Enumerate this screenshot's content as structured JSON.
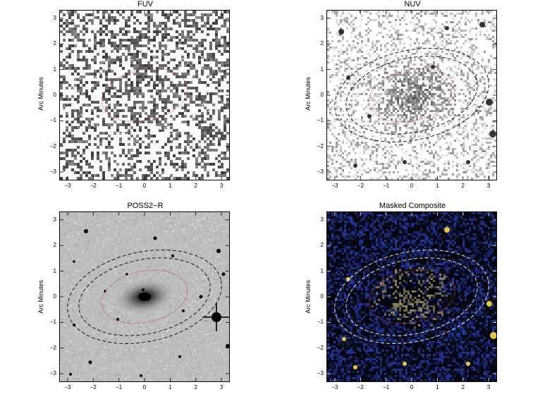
{
  "figure": {
    "panels": [
      {
        "id": "fuv",
        "title": "FUV",
        "ylabel": "Arc Minutes",
        "style": "fuv"
      },
      {
        "id": "nuv",
        "title": "NUV",
        "ylabel": "Arc Minutes",
        "style": "nuv"
      },
      {
        "id": "poss",
        "title": "POSS2−R",
        "ylabel": "Arc Minutes",
        "style": "poss"
      },
      {
        "id": "composite",
        "title": "Masked Composite",
        "ylabel": "Arc Minutes",
        "style": "composite"
      }
    ],
    "x_ticks": [
      "−3",
      "−2",
      "−1",
      "0",
      "1",
      "2",
      "3"
    ],
    "y_ticks": [
      "3",
      "2",
      "1",
      "0",
      "−1",
      "−2",
      "−3"
    ],
    "axis_range": [
      -3.3,
      3.3
    ],
    "colors": {
      "inner_ellipse": "#e03030",
      "outer_ellipse_dark": "#000000",
      "outer_ellipse_light": "#ffffff"
    }
  }
}
